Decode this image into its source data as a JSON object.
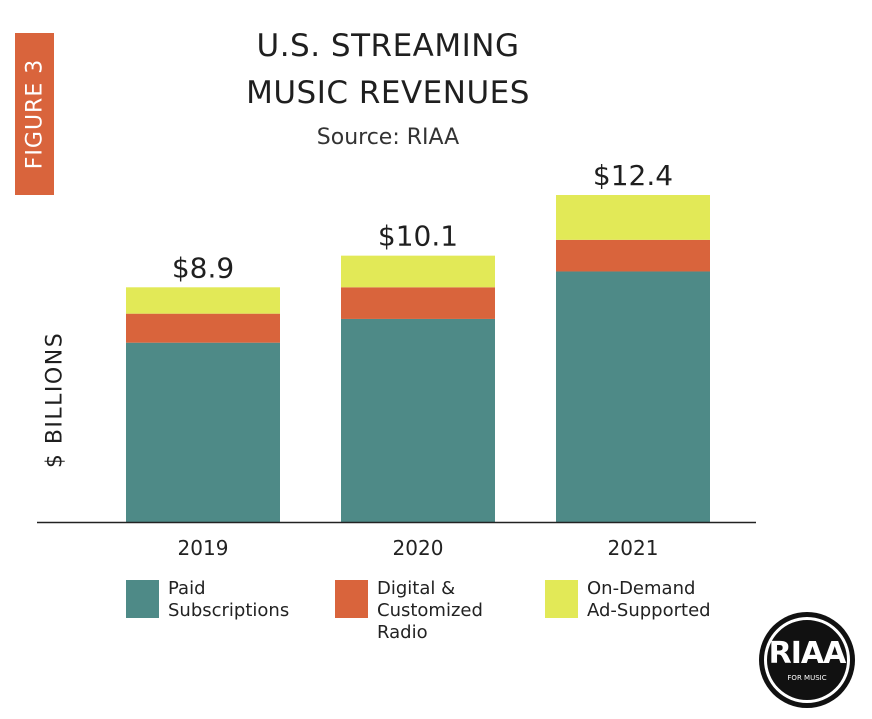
{
  "figure_label": "FIGURE 3",
  "logo": {
    "text": "RIAA",
    "subtext": "FOR MUSIC"
  },
  "colors": {
    "paid": "#4e8a87",
    "digital": "#d9643c",
    "ondemand": "#e2e957",
    "axis": "#222222"
  },
  "chart_data": {
    "type": "bar",
    "stacked": true,
    "title_lines": [
      "U.S. STREAMING",
      "MUSIC REVENUES"
    ],
    "subtitle": "Source: RIAA",
    "ylabel": "$ BILLIONS",
    "xlabel": "",
    "grid": false,
    "legend_position": "bottom",
    "categories": [
      "2019",
      "2020",
      "2021"
    ],
    "totals": [
      "$8.9",
      "$10.1",
      "$12.4"
    ],
    "ylim": [
      0,
      12.4
    ],
    "series": [
      {
        "name": "Paid\nSubscriptions",
        "key": "paid",
        "values": [
          6.8,
          7.7,
          9.5
        ]
      },
      {
        "name": "Digital &\nCustomized\nRadio",
        "key": "digital",
        "values": [
          1.1,
          1.2,
          1.2
        ]
      },
      {
        "name": "On-Demand\nAd-Supported",
        "key": "ondemand",
        "values": [
          1.0,
          1.2,
          1.7
        ]
      }
    ]
  }
}
